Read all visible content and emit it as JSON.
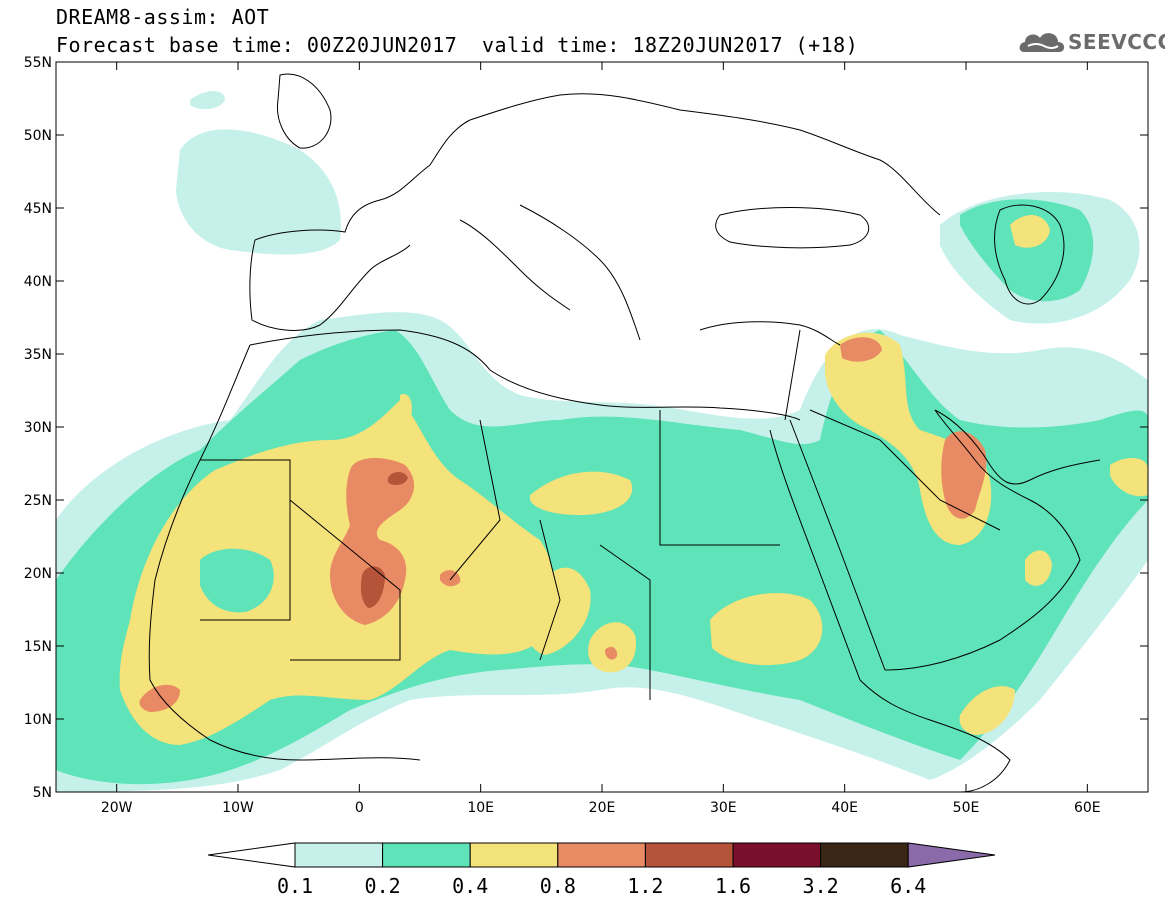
{
  "header": {
    "title": "DREAM8-assim: AOT",
    "base_time": "Forecast base time: 00Z20JUN2017",
    "valid_time": "valid time: 18Z20JUN2017 (+18)",
    "logo_text": "SEEVCCC",
    "logo_icon": "cloud-logo-icon"
  },
  "map": {
    "variable": "AOT",
    "lat_ticks": [
      "55N",
      "50N",
      "45N",
      "40N",
      "35N",
      "30N",
      "25N",
      "20N",
      "15N",
      "10N",
      "5N"
    ],
    "lon_ticks": [
      "20W",
      "10W",
      "0",
      "10E",
      "20E",
      "30E",
      "40E",
      "50E",
      "60E"
    ],
    "lat_range": [
      5,
      55
    ],
    "lon_range": [
      -25,
      65
    ]
  },
  "colorbar": {
    "labels": [
      "0.1",
      "0.2",
      "0.4",
      "0.8",
      "1.2",
      "1.6",
      "3.2",
      "6.4"
    ],
    "colors": {
      "below": "#ffffff",
      "c1": "#c6f1ea",
      "c2": "#5fe3b8",
      "c3": "#f4e27a",
      "c4": "#e88a63",
      "c5": "#b55438",
      "c6": "#7a0f2c",
      "c7": "#3a2616",
      "above": "#8a6aa8"
    }
  }
}
